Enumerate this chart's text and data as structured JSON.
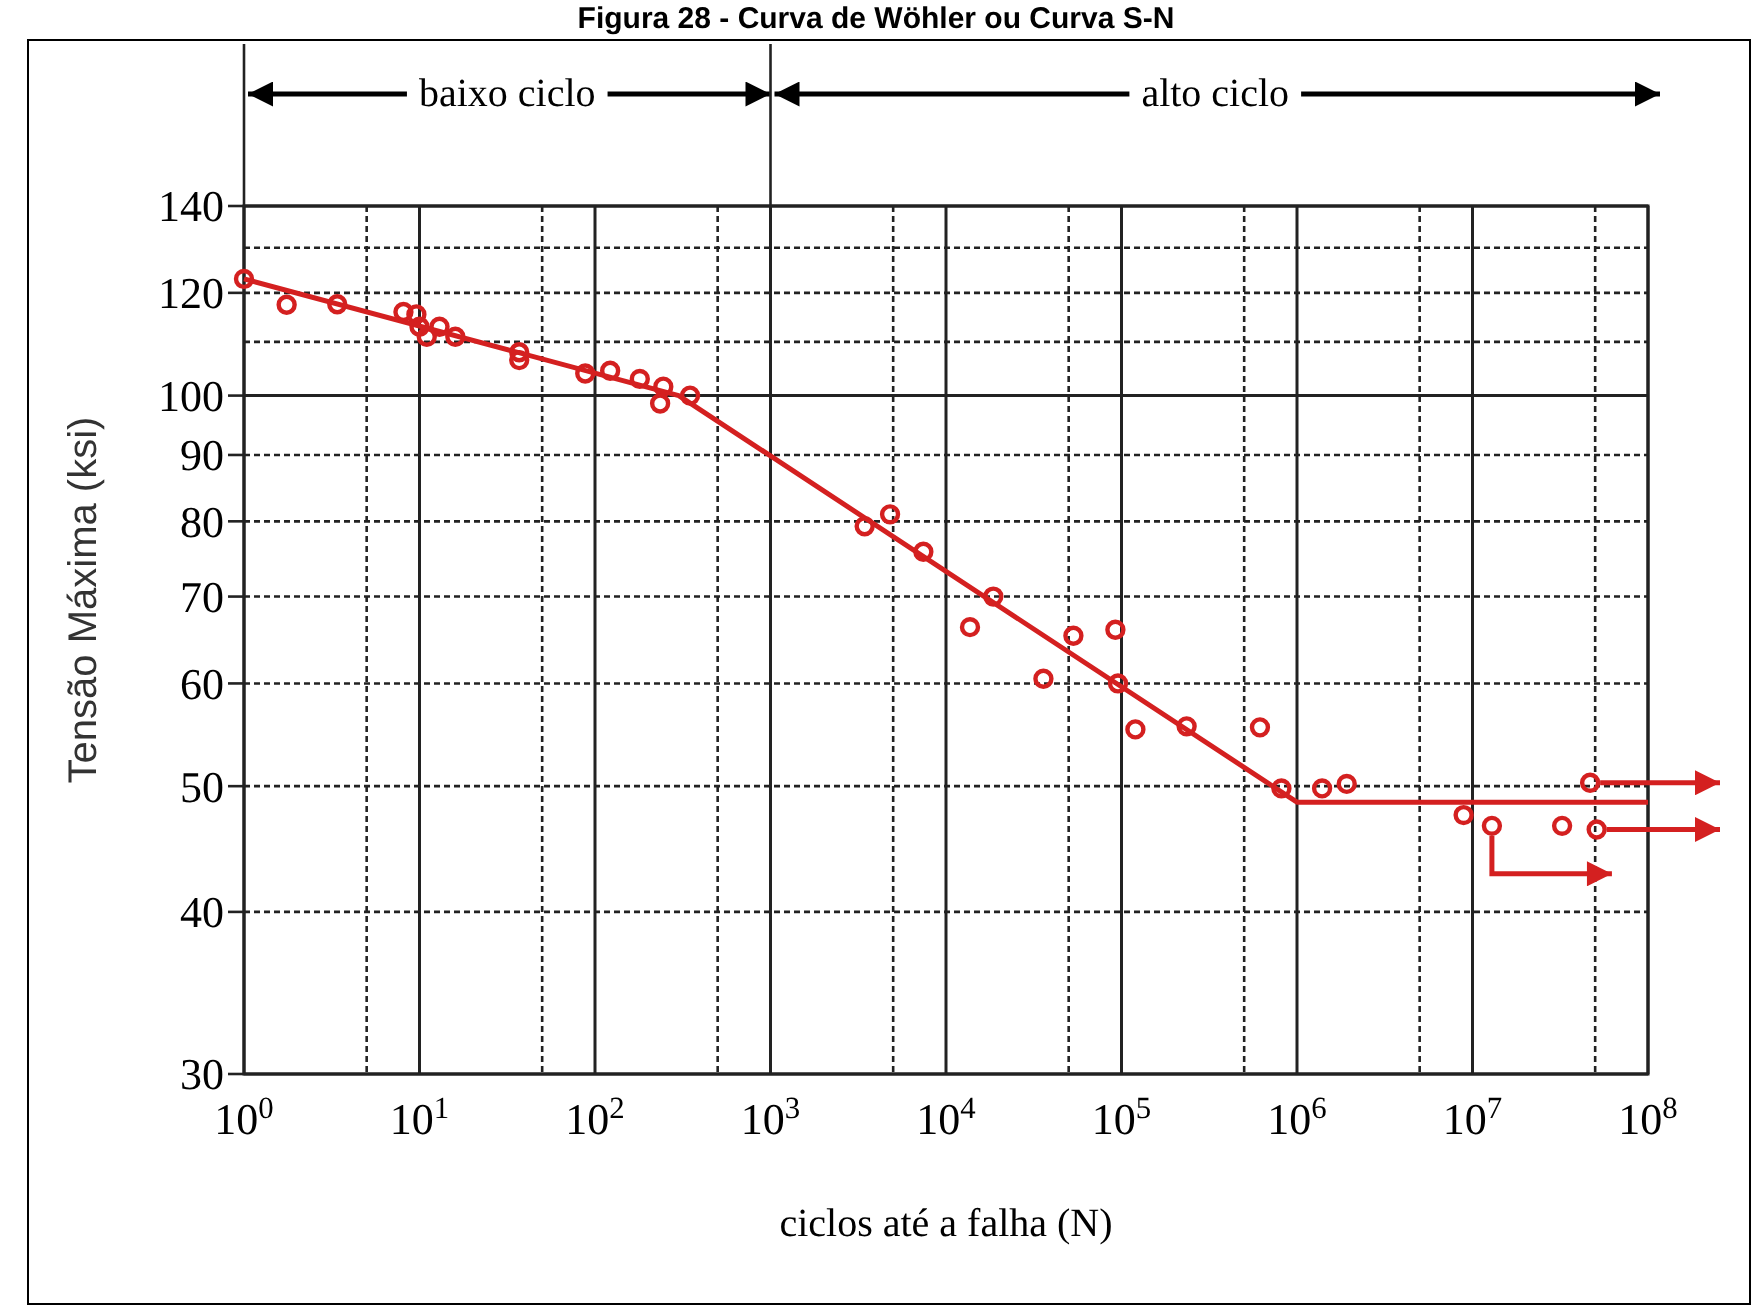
{
  "chart_data": {
    "type": "scatter",
    "title": "Figura 28 - Curva de Wöhler ou Curva S-N",
    "xlabel": "ciclos até a falha (N)",
    "ylabel": "Tensão Máxima (ksi)",
    "log": "xy",
    "grid": true,
    "xlim": [
      1,
      100000000
    ],
    "ylim": [
      30,
      140
    ],
    "xticks": [
      {
        "value": 1,
        "label": "10$^{0}$"
      },
      {
        "value": 5,
        "label": null
      },
      {
        "value": 10,
        "label": "10$^{1}$"
      },
      {
        "value": 50,
        "label": null
      },
      {
        "value": 100,
        "label": "10$^{2}$"
      },
      {
        "value": 500,
        "label": null
      },
      {
        "value": 1000,
        "label": "10$^{3}$"
      },
      {
        "value": 5000,
        "label": null
      },
      {
        "value": 10000,
        "label": "10$^{4}$"
      },
      {
        "value": 50000,
        "label": null
      },
      {
        "value": 100000,
        "label": "10$^{5}$"
      },
      {
        "value": 500000,
        "label": null
      },
      {
        "value": 1000000,
        "label": "10$^{6}$"
      },
      {
        "value": 5000000,
        "label": null
      },
      {
        "value": 10000000,
        "label": "10$^{7}$"
      },
      {
        "value": 50000000,
        "label": null
      },
      {
        "value": 100000000,
        "label": "10$^{8}$"
      }
    ],
    "yticks": [
      30,
      40,
      50,
      60,
      70,
      80,
      90,
      100,
      {
        "value": 110,
        "label": null
      },
      120,
      {
        "value": 130,
        "label": null
      },
      140
    ],
    "annotations": [
      "baixo ciclo",
      "alto ciclo"
    ],
    "series": [
      {
        "marker": "circle",
        "color": "#d42020",
        "x": [
          1,
          1.75,
          3.4,
          8.1,
          9.6,
          10,
          11,
          13,
          16,
          37,
          37,
          88,
          122,
          180,
          245,
          235,
          348,
          3440,
          4800,
          7430,
          18600,
          13700,
          53200,
          92300,
          35900,
          95500,
          120000,
          235000,
          615000,
          815000,
          1390000,
          1920000,
          8900000,
          12900000,
          32400000,
          46800000,
          51000000
        ],
        "values": [
          123,
          117.5,
          117.6,
          116,
          115.5,
          113,
          111,
          113,
          111,
          108,
          106.5,
          104,
          104.5,
          103,
          101.6,
          98.6,
          100,
          79.3,
          81,
          75.8,
          70,
          66.3,
          65.3,
          66,
          60.5,
          60,
          55.3,
          55.6,
          55.5,
          49.8,
          49.8,
          50.2,
          47.5,
          46.6,
          46.6,
          50.3,
          46.3
        ]
      },
      {
        "type": "line",
        "color": "#d42020",
        "x": [
          1,
          300,
          1000000,
          100000000
        ],
        "values": [
          123,
          100,
          48.6,
          48.6
        ]
      }
    ]
  }
}
